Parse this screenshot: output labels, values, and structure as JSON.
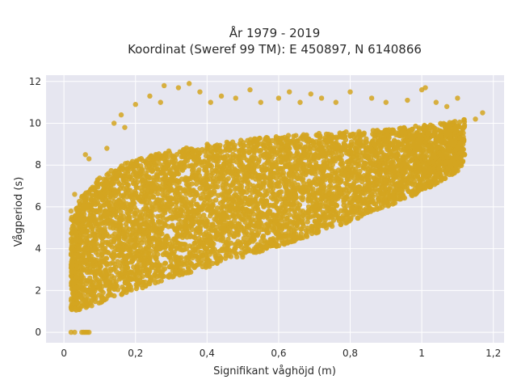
{
  "chart_data": {
    "type": "scatter",
    "title_line1": "År 1979 - 2019",
    "title_line2": "Koordinat (Sweref 99 TM): E 450897, N 6140866",
    "xlabel": "Signifikant våghöjd (m)",
    "ylabel": "Vågperiod (s)",
    "xlim": [
      -0.05,
      1.23
    ],
    "ylim": [
      -0.5,
      12.3
    ],
    "x_ticks": [
      {
        "value": 0,
        "label": "0"
      },
      {
        "value": 0.2,
        "label": "0,2"
      },
      {
        "value": 0.4,
        "label": "0,4"
      },
      {
        "value": 0.6,
        "label": "0,6"
      },
      {
        "value": 0.8,
        "label": "0,8"
      },
      {
        "value": 1.0,
        "label": "1"
      },
      {
        "value": 1.2,
        "label": "1,2"
      }
    ],
    "y_ticks": [
      {
        "value": 0,
        "label": "0"
      },
      {
        "value": 2,
        "label": "2"
      },
      {
        "value": 4,
        "label": "4"
      },
      {
        "value": 6,
        "label": "6"
      },
      {
        "value": 8,
        "label": "8"
      },
      {
        "value": 10,
        "label": "10"
      },
      {
        "value": 12,
        "label": "12"
      }
    ],
    "grid": true,
    "marker_color": "#d4a520",
    "background_color": "#e6e6f0",
    "density_envelope": {
      "x": [
        0.02,
        0.05,
        0.1,
        0.2,
        0.3,
        0.4,
        0.5,
        0.6,
        0.7,
        0.8,
        0.9,
        1.0,
        1.1,
        1.12
      ],
      "y_low": [
        1.0,
        1.1,
        1.4,
        2.0,
        2.6,
        3.1,
        3.6,
        4.1,
        4.7,
        5.3,
        6.0,
        6.7,
        7.7,
        8.2
      ],
      "y_high": [
        5.5,
        6.5,
        7.5,
        8.3,
        8.7,
        9.0,
        9.2,
        9.4,
        9.5,
        9.6,
        9.7,
        9.9,
        10.1,
        10.2
      ]
    },
    "points": [
      [
        0.02,
        0.0
      ],
      [
        0.03,
        0.0
      ],
      [
        0.05,
        0.0
      ],
      [
        0.055,
        0.0
      ],
      [
        0.06,
        0.0
      ],
      [
        0.065,
        0.0
      ],
      [
        0.07,
        0.0
      ],
      [
        0.06,
        8.5
      ],
      [
        0.07,
        8.3
      ],
      [
        0.12,
        8.8
      ],
      [
        0.14,
        10.0
      ],
      [
        0.16,
        10.4
      ],
      [
        0.17,
        9.8
      ],
      [
        0.2,
        10.9
      ],
      [
        0.24,
        11.3
      ],
      [
        0.27,
        11.0
      ],
      [
        0.28,
        11.8
      ],
      [
        0.32,
        11.7
      ],
      [
        0.35,
        11.9
      ],
      [
        0.38,
        11.5
      ],
      [
        0.41,
        11.0
      ],
      [
        0.44,
        11.3
      ],
      [
        0.48,
        11.2
      ],
      [
        0.52,
        11.6
      ],
      [
        0.55,
        11.0
      ],
      [
        0.6,
        11.2
      ],
      [
        0.63,
        11.5
      ],
      [
        0.66,
        11.0
      ],
      [
        0.69,
        11.4
      ],
      [
        0.72,
        11.2
      ],
      [
        0.76,
        11.0
      ],
      [
        0.8,
        11.5
      ],
      [
        0.86,
        11.2
      ],
      [
        0.9,
        11.0
      ],
      [
        0.96,
        11.1
      ],
      [
        1.0,
        11.6
      ],
      [
        1.01,
        11.7
      ],
      [
        1.04,
        11.0
      ],
      [
        1.07,
        10.8
      ],
      [
        1.1,
        11.2
      ],
      [
        1.15,
        10.2
      ],
      [
        1.17,
        10.5
      ],
      [
        0.02,
        5.8
      ],
      [
        0.03,
        6.6
      ],
      [
        0.04,
        4.2
      ],
      [
        0.02,
        2.7
      ],
      [
        0.02,
        1.2
      ],
      [
        0.03,
        3.9
      ]
    ]
  }
}
